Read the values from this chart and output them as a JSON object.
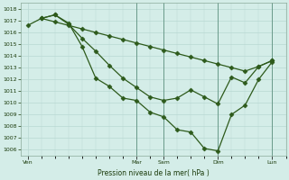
{
  "bg_color": "#d4ede8",
  "grid_color": "#b8d8d2",
  "line_color": "#2d5a1b",
  "marker_color": "#2d5a1b",
  "xlabel": "Pression niveau de la mer( hPa )",
  "ylim": [
    1005.5,
    1018.5
  ],
  "yticks": [
    1006,
    1007,
    1008,
    1009,
    1010,
    1011,
    1012,
    1013,
    1014,
    1015,
    1016,
    1017,
    1018
  ],
  "xtick_labels": [
    "Ven",
    "Mar",
    "Sam",
    "Dim",
    "Lun"
  ],
  "xtick_pos": [
    0,
    16,
    20,
    28,
    36
  ],
  "sep_lines": [
    16,
    20,
    28,
    36
  ],
  "line1_x": [
    0,
    2,
    4,
    6,
    8,
    10,
    12,
    14,
    16,
    18,
    20,
    22,
    24,
    26,
    28,
    30,
    32,
    34,
    36
  ],
  "line1_y": [
    1016.6,
    1017.2,
    1016.9,
    1016.6,
    1016.3,
    1016.0,
    1015.7,
    1015.4,
    1015.1,
    1014.8,
    1014.5,
    1014.2,
    1013.9,
    1013.6,
    1013.3,
    1013.0,
    1012.7,
    1013.1,
    1013.6
  ],
  "line2_x": [
    2,
    4,
    6,
    8,
    10,
    12,
    14,
    16,
    18,
    20,
    22,
    24,
    26,
    28,
    30,
    32,
    34,
    36
  ],
  "line2_y": [
    1017.2,
    1017.5,
    1016.7,
    1015.5,
    1014.4,
    1013.2,
    1012.1,
    1011.3,
    1010.5,
    1010.2,
    1010.4,
    1011.1,
    1010.5,
    1009.9,
    1012.2,
    1011.7,
    1013.1,
    1013.6
  ],
  "line3_x": [
    2,
    4,
    6,
    8,
    10,
    12,
    14,
    16,
    18,
    20,
    22,
    24,
    26,
    28,
    30,
    32,
    34,
    36
  ],
  "line3_y": [
    1017.2,
    1017.5,
    1016.8,
    1014.8,
    1012.1,
    1011.4,
    1010.4,
    1010.2,
    1009.2,
    1008.8,
    1007.7,
    1007.5,
    1006.1,
    1005.9,
    1009.0,
    1009.8,
    1012.0,
    1013.5
  ]
}
